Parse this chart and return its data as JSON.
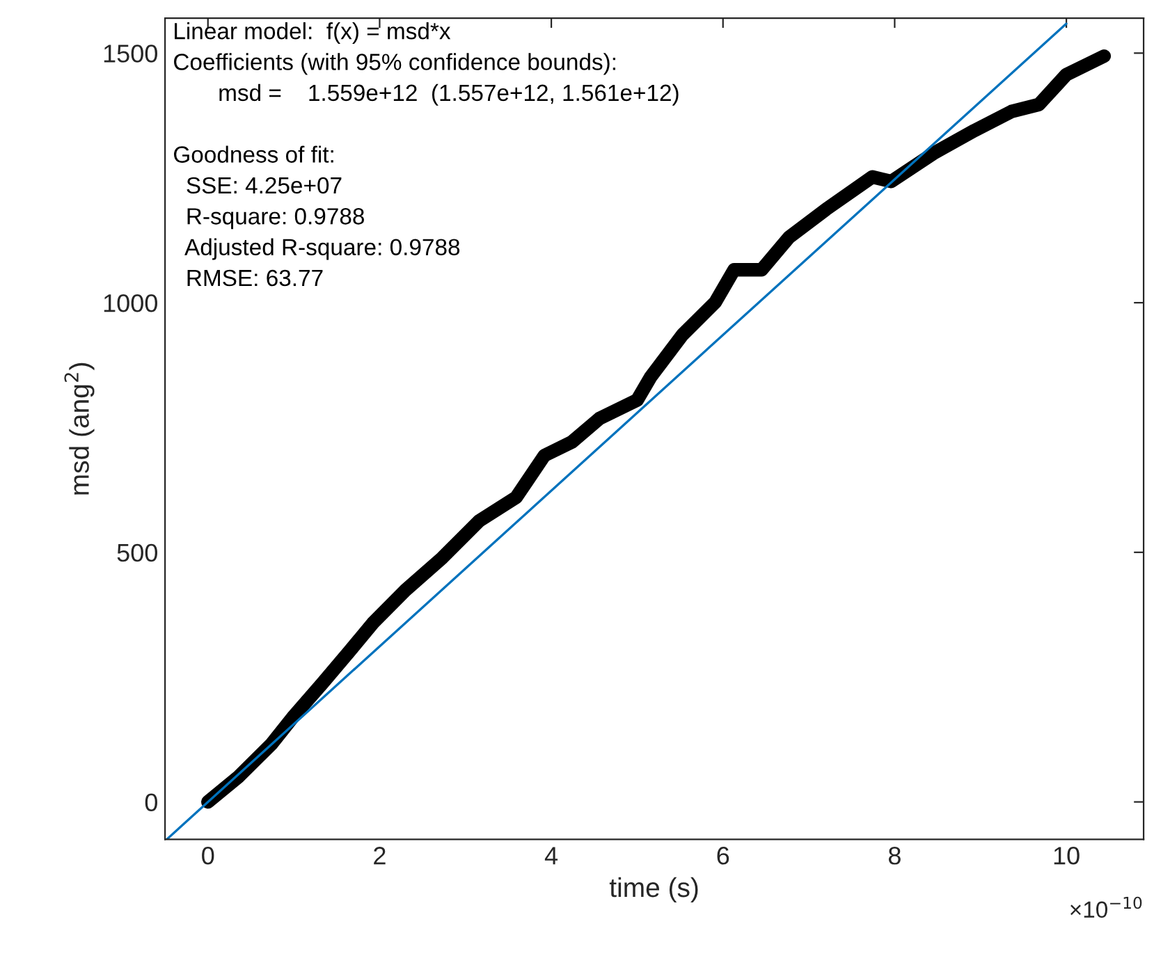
{
  "chart_data": {
    "type": "line",
    "xlabel": "time (s)",
    "ylabel": "msd (ang$^{2}$)",
    "series": [
      {
        "color": "#000000",
        "x": [
          0,
          0.36,
          0.74,
          1.0,
          1.33,
          1.65,
          1.92,
          2.3,
          2.73,
          3.16,
          3.59,
          3.92,
          4.24,
          4.56,
          5.0,
          5.16,
          5.53,
          5.91,
          6.13,
          6.45,
          6.77,
          7.2,
          7.74,
          7.96,
          8.45,
          8.93,
          9.36,
          9.68,
          10.0,
          10.44
        ],
        "values": [
          0,
          51,
          116,
          172,
          237,
          302,
          358,
          424,
          489,
          563,
          610,
          694,
          721,
          768,
          805,
          852,
          936,
          1001,
          1066,
          1066,
          1131,
          1187,
          1252,
          1243,
          1299,
          1345,
          1383,
          1397,
          1457,
          1494
        ]
      },
      {
        "color": "#0072bd",
        "x": [
          -0.48,
          10.0
        ],
        "values": [
          -75,
          1559
        ]
      }
    ],
    "xlim": [
      -0.5,
      10.9
    ],
    "xticks": [
      0,
      2,
      4,
      6,
      8,
      10
    ],
    "ylim": [
      -75,
      1570
    ],
    "yticks": [
      0,
      500,
      1000,
      1500
    ],
    "grid": false,
    "legend": false,
    "marker": "none",
    "line_style": "solid",
    "annotations": [
      "Linear model:  f(x) = msd*x\nCoefficients (with 95% confidence bounds):\n       msd =    1.559e+12  (1.557e+12, 1.561e+12)\n\nGoodness of fit:\n  SSE: 4.25e+07\n  R-square: 0.9788\n  Adjusted R-square: 0.9788\n  RMSE: 63.77",
      "×10$^{−10}$"
    ]
  }
}
